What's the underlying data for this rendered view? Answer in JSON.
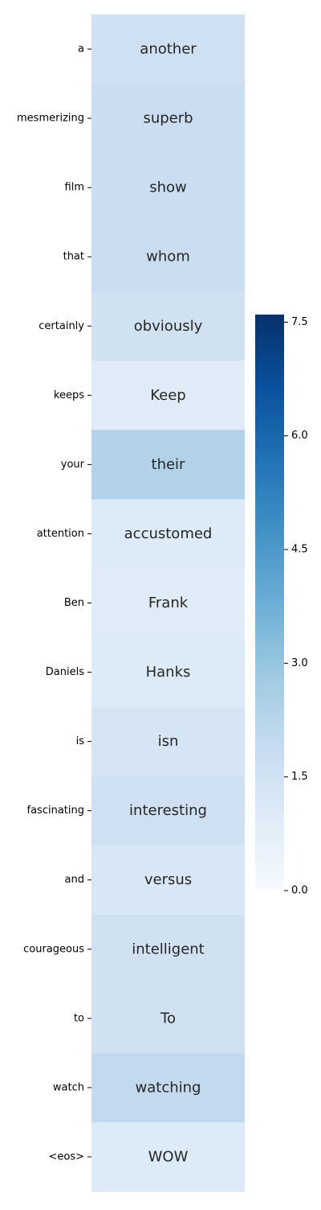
{
  "chart_data": {
    "type": "heatmap",
    "rows": [
      "a",
      "mesmerizing",
      "film",
      "that",
      "certainly",
      "keeps",
      "your",
      "attention",
      "Ben",
      "Daniels",
      "is",
      "fascinating",
      "and",
      "courageous",
      "to",
      "watch",
      "<eos>"
    ],
    "annotations": [
      "another",
      "superb",
      "show",
      "whom",
      "obviously",
      "Keep",
      "their",
      "accustomed",
      "Frank",
      "Hanks",
      "isn",
      "interesting",
      "versus",
      "intelligent",
      "To",
      "watching",
      "WOW"
    ],
    "values": [
      1.6,
      1.7,
      1.7,
      1.7,
      1.5,
      0.9,
      2.4,
      1.0,
      0.9,
      1.0,
      1.3,
      1.6,
      1.2,
      1.5,
      1.5,
      2.0,
      1.0
    ],
    "colorbar": {
      "min": 0.0,
      "max": 7.6,
      "ticks": [
        0.0,
        1.5,
        3.0,
        4.5,
        6.0,
        7.5
      ],
      "tick_labels": [
        "0.0",
        "1.5",
        "3.0",
        "4.5",
        "6.0",
        "7.5"
      ],
      "colormap": "Blues"
    },
    "title": "",
    "xlabel": "",
    "ylabel": ""
  }
}
